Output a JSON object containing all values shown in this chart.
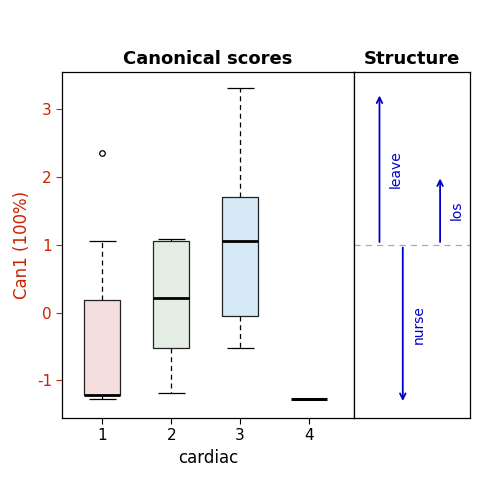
{
  "title_left": "Canonical scores",
  "title_right": "Structure",
  "xlabel": "cardiac",
  "ylabel": "Can1 (100%)",
  "ylabel_color": "#cc2200",
  "boxes": [
    {
      "label": "1",
      "whisker_low": -1.28,
      "q1": -1.22,
      "median": -1.22,
      "q3": 0.18,
      "whisker_high": 1.05,
      "outliers": [
        2.35
      ],
      "color": "#f5dede",
      "edgecolor": "#222222"
    },
    {
      "label": "2",
      "whisker_low": -1.18,
      "q1": -0.52,
      "median": 0.22,
      "q3": 1.05,
      "whisker_high": 1.08,
      "outliers": [],
      "color": "#e4ede4",
      "edgecolor": "#222222"
    },
    {
      "label": "3",
      "whisker_low": -0.52,
      "q1": -0.05,
      "median": 1.05,
      "q3": 1.7,
      "whisker_high": 3.32,
      "outliers": [],
      "color": "#d5e8f5",
      "edgecolor": "#222222"
    },
    {
      "label": "4",
      "whisker_low": -1.28,
      "q1": -1.28,
      "median": -1.28,
      "q3": -1.28,
      "whisker_high": -1.28,
      "outliers": [],
      "color": "#ffffff",
      "edgecolor": "#222222"
    }
  ],
  "ylim": [
    -1.55,
    3.55
  ],
  "yticks": [
    -1,
    0,
    1,
    2,
    3
  ],
  "arrow_color": "#0000cc",
  "dashed_line_y": 0.5,
  "background_color": "#ffffff"
}
